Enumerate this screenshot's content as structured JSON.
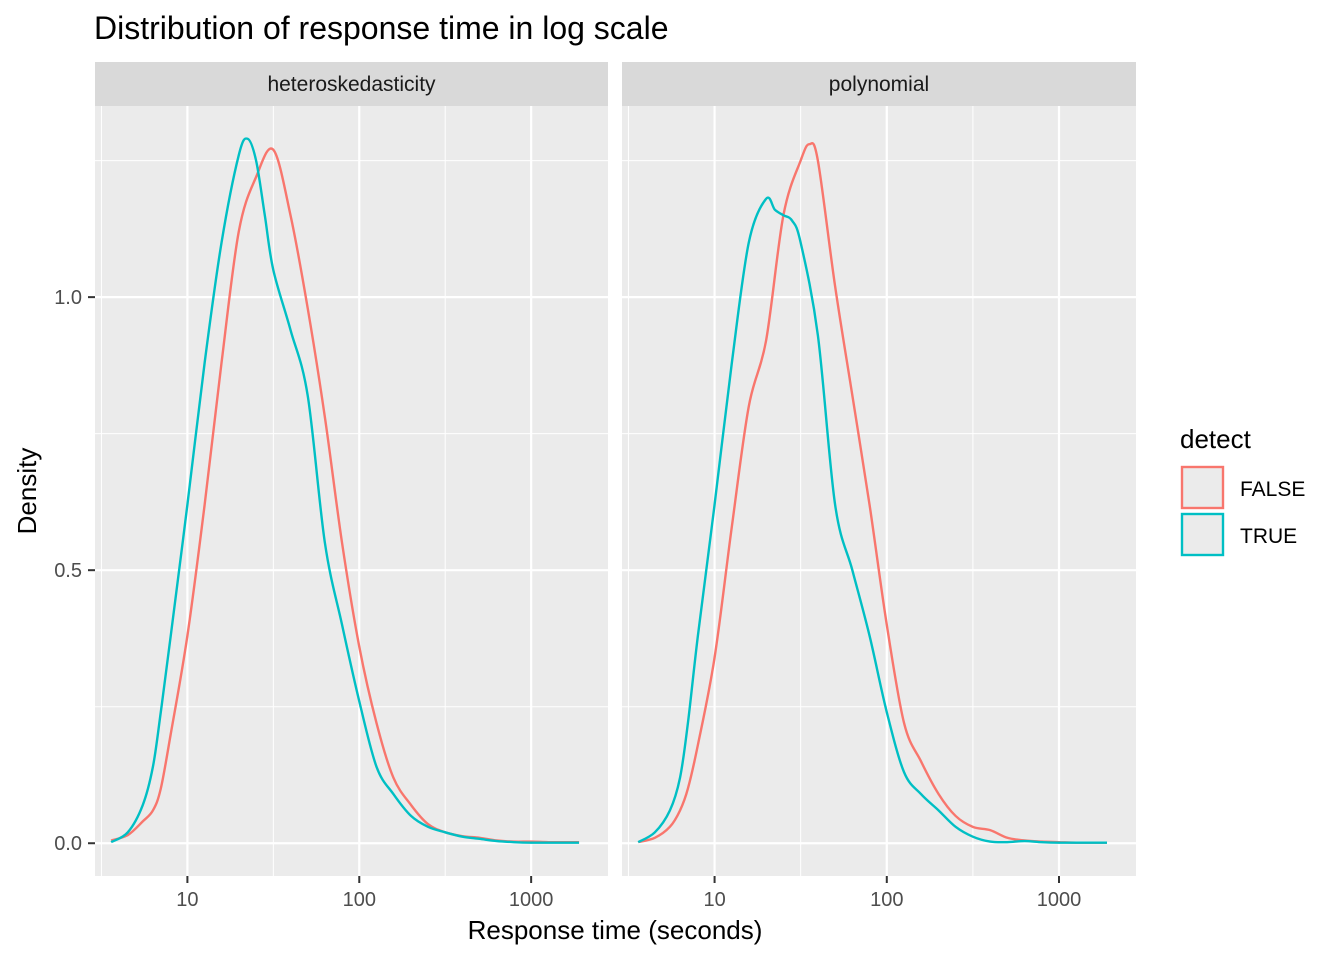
{
  "chart_data": {
    "type": "line",
    "title": "Distribution of response time in log scale",
    "xlabel": "Response time (seconds)",
    "ylabel": "Density",
    "x_scale": "log10",
    "xlim": [
      2.9,
      2800
    ],
    "ylim": [
      -0.06,
      1.35
    ],
    "x_ticks": [
      10,
      100,
      1000
    ],
    "x_tick_labels": [
      "10",
      "100",
      "1000"
    ],
    "y_ticks": [
      0.0,
      0.5,
      1.0
    ],
    "y_tick_labels": [
      "0.0",
      "0.5",
      "1.0"
    ],
    "grid": true,
    "legend": {
      "title": "detect",
      "position": "right",
      "entries": [
        {
          "label": "FALSE",
          "color": "#F8766D"
        },
        {
          "label": "TRUE",
          "color": "#00BFC4"
        }
      ]
    },
    "colors": {
      "FALSE": "#F8766D",
      "TRUE": "#00BFC4",
      "panel_bg": "#EBEBEB",
      "strip_bg": "#D9D9D9",
      "grid": "#FFFFFF"
    },
    "panels": [
      {
        "label": "heteroskedasticity",
        "series": [
          {
            "name": "FALSE",
            "x": [
              3.6,
              4.5,
              5.5,
              6.3,
              7.0,
              8.0,
              10.0,
              12.6,
              15.8,
              19.9,
              25.1,
              31.6,
              39.8,
              50.1,
              63.1,
              79.4,
              100,
              126,
              158,
              200,
              251,
              316,
              398,
              501,
              631,
              794,
              1000,
              1259,
              1585,
              1900
            ],
            "y": [
              0.005,
              0.015,
              0.04,
              0.06,
              0.1,
              0.2,
              0.38,
              0.62,
              0.88,
              1.12,
              1.22,
              1.27,
              1.15,
              0.98,
              0.78,
              0.55,
              0.36,
              0.22,
              0.12,
              0.07,
              0.035,
              0.02,
              0.013,
              0.01,
              0.005,
              0.003,
              0.003,
              0.002,
              0.002,
              0.002
            ]
          },
          {
            "name": "TRUE",
            "x": [
              3.6,
              4.5,
              5.5,
              6.3,
              7.0,
              8.0,
              10.0,
              12.6,
              15.8,
              19.9,
              22.4,
              25.1,
              28.2,
              31.6,
              39.8,
              50.1,
              63.1,
              79.4,
              100,
              126,
              158,
              200,
              251,
              316,
              398,
              501,
              631,
              794,
              1000,
              1259,
              1585,
              1900
            ],
            "y": [
              0.002,
              0.02,
              0.07,
              0.14,
              0.24,
              0.38,
              0.62,
              0.88,
              1.1,
              1.26,
              1.29,
              1.25,
              1.15,
              1.05,
              0.94,
              0.82,
              0.55,
              0.4,
              0.26,
              0.14,
              0.09,
              0.05,
              0.03,
              0.02,
              0.012,
              0.008,
              0.004,
              0.002,
              0.001,
              0.001,
              0.001,
              0.001
            ]
          }
        ]
      },
      {
        "label": "polynomial",
        "series": [
          {
            "name": "FALSE",
            "x": [
              3.6,
              4.5,
              5.5,
              6.3,
              7.0,
              8.0,
              10.0,
              12.6,
              15.8,
              19.9,
              25.1,
              31.6,
              35.5,
              39.8,
              50.1,
              63.1,
              79.4,
              100,
              126,
              158,
              200,
              251,
              316,
              398,
              501,
              631,
              794,
              1000,
              1259,
              1585,
              1900
            ],
            "y": [
              0.002,
              0.01,
              0.03,
              0.06,
              0.1,
              0.18,
              0.34,
              0.58,
              0.8,
              0.92,
              1.15,
              1.25,
              1.28,
              1.25,
              1.02,
              0.82,
              0.62,
              0.4,
              0.22,
              0.15,
              0.09,
              0.05,
              0.03,
              0.024,
              0.01,
              0.005,
              0.003,
              0.002,
              0.001,
              0.001,
              0.001
            ]
          },
          {
            "name": "TRUE",
            "x": [
              3.6,
              4.5,
              5.5,
              6.3,
              7.0,
              8.0,
              10.0,
              12.6,
              15.8,
              19.9,
              22.4,
              25.1,
              28.2,
              31.6,
              39.8,
              50.1,
              63.1,
              79.4,
              100,
              126,
              158,
              200,
              251,
              316,
              398,
              501,
              631,
              794,
              1000,
              1259,
              1585,
              1900
            ],
            "y": [
              0.002,
              0.02,
              0.06,
              0.12,
              0.22,
              0.38,
              0.62,
              0.88,
              1.1,
              1.18,
              1.16,
              1.15,
              1.14,
              1.1,
              0.93,
              0.62,
              0.5,
              0.38,
              0.24,
              0.13,
              0.09,
              0.06,
              0.03,
              0.012,
              0.003,
              0.002,
              0.004,
              0.002,
              0.001,
              0.001,
              0.001,
              0.001
            ]
          }
        ]
      }
    ]
  }
}
